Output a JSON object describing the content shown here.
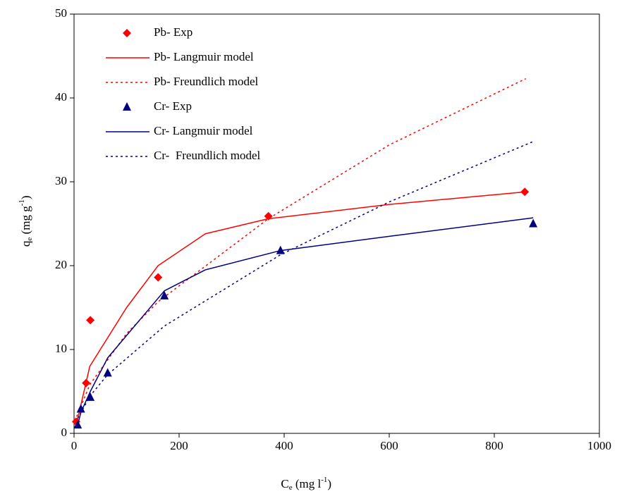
{
  "chart_data": {
    "type": "scatter",
    "xlabel_parts": [
      "C",
      "e",
      " (mg l",
      "-1",
      ")"
    ],
    "ylabel_parts": [
      "q",
      "e",
      " (mg g",
      "-1",
      ")"
    ],
    "xlim": [
      0,
      1000
    ],
    "xticks": [
      0,
      200,
      400,
      600,
      800,
      1000
    ],
    "ylim": [
      0,
      50
    ],
    "yticks": [
      0,
      10,
      20,
      30,
      40,
      50
    ],
    "legend": "upper-left",
    "series": [
      {
        "name": "Pb- Exp",
        "color": "#ff0000",
        "style": "marker",
        "marker": "diamond",
        "x": [
          4,
          23,
          31,
          160,
          370,
          858
        ],
        "values": [
          1.4,
          6,
          13.5,
          18.6,
          25.9,
          28.8
        ]
      },
      {
        "name": "Pb- Langmuir model",
        "color": "#ff0000",
        "style": "solid",
        "x": [
          5,
          30,
          100,
          160,
          250,
          370,
          600,
          860
        ],
        "values": [
          1.2,
          8,
          15,
          20,
          23.8,
          25.6,
          27.3,
          28.8
        ]
      },
      {
        "name": "Pb- Freundlich model",
        "color": "#ff0000",
        "style": "dotted",
        "x": [
          5,
          30,
          100,
          160,
          370,
          600,
          860
        ],
        "values": [
          2,
          5.8,
          11.9,
          15.7,
          25.6,
          34.4,
          42.3
        ]
      },
      {
        "name": "Cr- Exp",
        "color": "#000080",
        "style": "marker",
        "marker": "triangle",
        "x": [
          7,
          13,
          31,
          64,
          172,
          393,
          874
        ],
        "values": [
          1,
          2.9,
          4.3,
          7.2,
          16.4,
          21.8,
          25
        ]
      },
      {
        "name": "Cr- Langmuir model",
        "color": "#000080",
        "style": "solid",
        "x": [
          7,
          13,
          31,
          64,
          172,
          250,
          393,
          600,
          874
        ],
        "values": [
          1,
          2.5,
          5,
          9,
          17,
          19.5,
          21.8,
          23.5,
          25.7
        ]
      },
      {
        "name": "Cr-  Freundlich model",
        "color": "#000080",
        "style": "dotted",
        "x": [
          7,
          31,
          64,
          172,
          393,
          600,
          874
        ],
        "values": [
          1.8,
          4.5,
          7,
          12.8,
          21.3,
          27.6,
          34.8
        ]
      }
    ]
  }
}
